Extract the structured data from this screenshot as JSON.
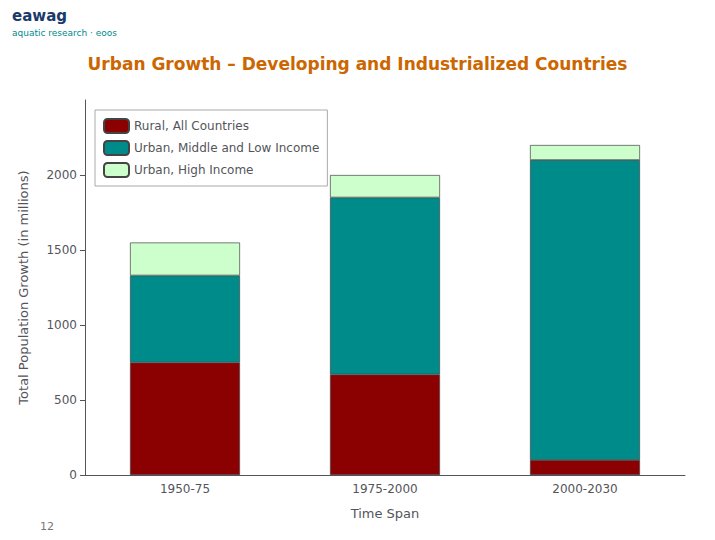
{
  "chart_data": {
    "type": "bar",
    "title": "Urban Growth – Developing and Industrialized Countries",
    "xlabel": "Time Span",
    "ylabel": "Total Population Growth (in millions)",
    "categories": [
      "1950-75",
      "1975-2000",
      "2000-2030"
    ],
    "series": [
      {
        "name": "Rural, All Countries",
        "color": "#8B0000",
        "values": [
          750,
          670,
          100
        ]
      },
      {
        "name": "Urban, Middle and Low Income",
        "color": "#008B8B",
        "values": [
          580,
          1180,
          2000
        ]
      },
      {
        "name": "Urban, High Income",
        "color": "#CCFFCC",
        "values": [
          220,
          150,
          100
        ]
      }
    ],
    "stacked": true,
    "ylim": [
      0,
      2500
    ],
    "yticks": [
      0,
      500,
      1000,
      1500,
      2000
    ],
    "grid": false,
    "legend": "upper left",
    "annotations": [
      "eawag",
      "aquatic research · eoos",
      "12"
    ]
  }
}
